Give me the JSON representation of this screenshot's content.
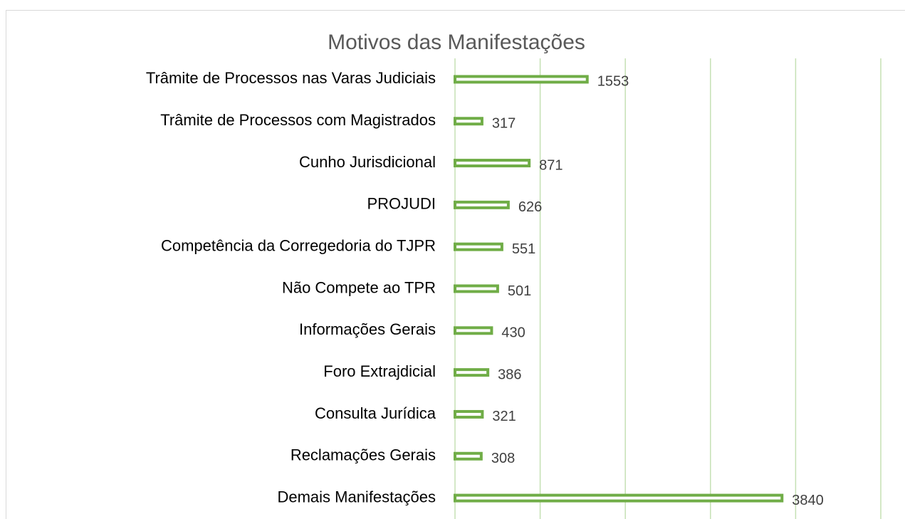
{
  "chart_data": {
    "type": "bar",
    "orientation": "horizontal",
    "title": "Motivos das Manifestações",
    "categories": [
      "Trâmite de Processos nas Varas Judiciais",
      "Trâmite de Processos com Magistrados",
      "Cunho Jurisdicional",
      "PROJUDI",
      "Competência da Corregedoria do TJPR",
      "Não Compete ao TPR",
      "Informações Gerais",
      "Foro Extrajdicial",
      "Consulta Jurídica",
      "Reclamações Gerais",
      "Demais Manifestações"
    ],
    "values": [
      1553,
      317,
      871,
      626,
      551,
      501,
      430,
      386,
      321,
      308,
      3840
    ],
    "color": "#70ad47",
    "xlim": [
      0,
      5000
    ],
    "xticks": [
      0,
      1000,
      2000,
      3000,
      4000,
      5000
    ],
    "grid": true
  }
}
